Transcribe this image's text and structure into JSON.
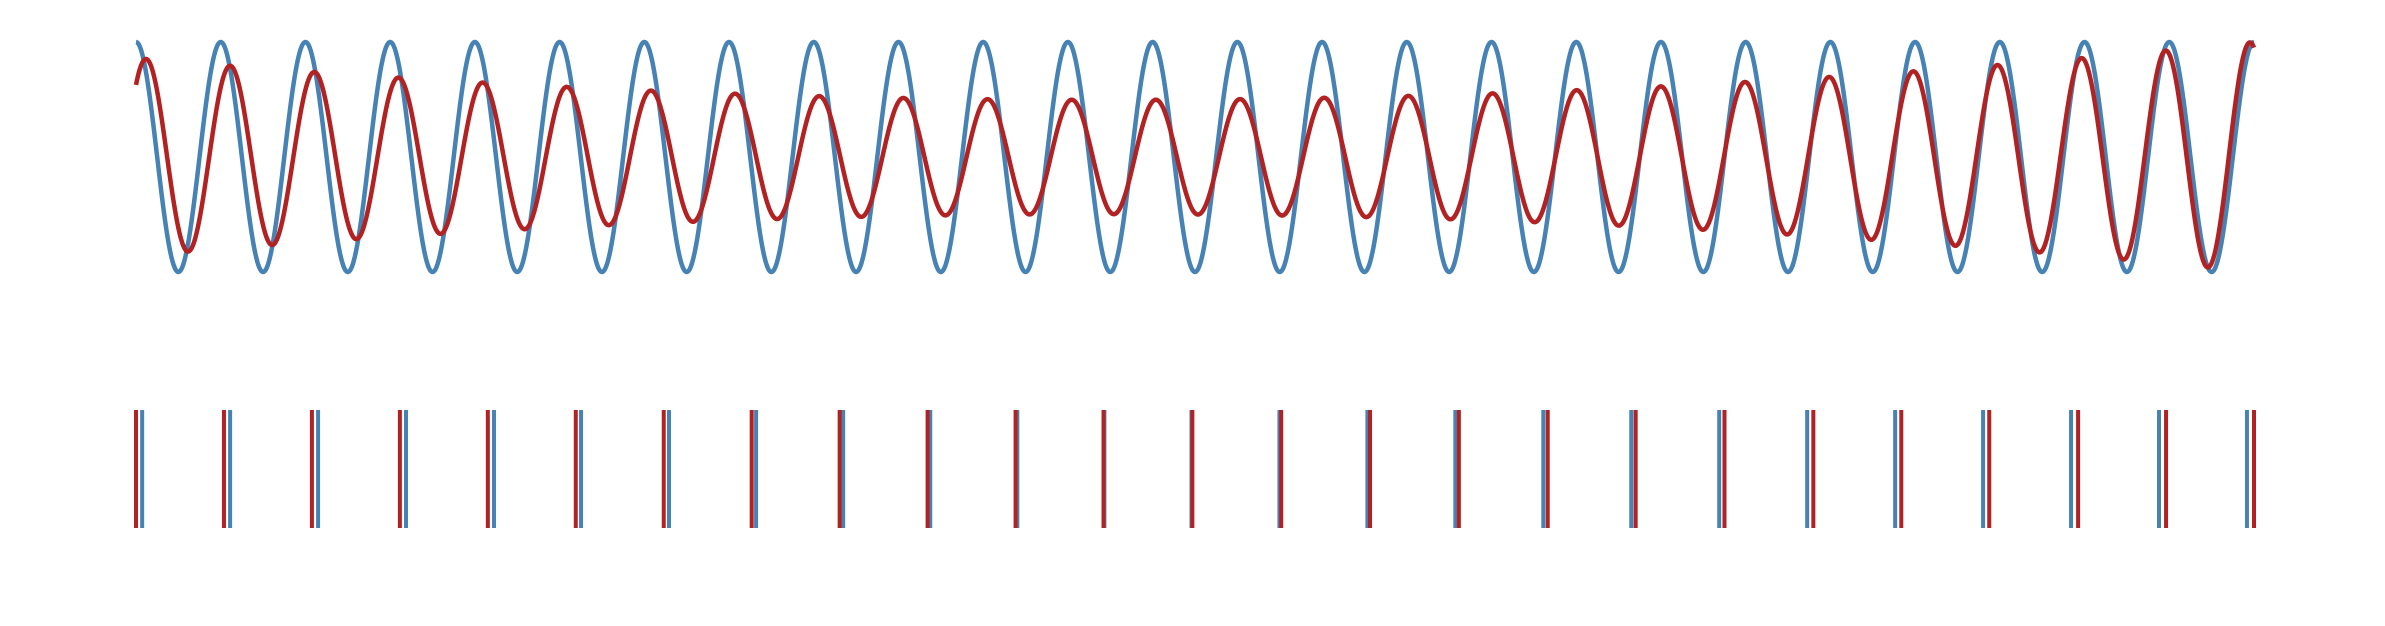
{
  "chart_data": [
    {
      "type": "line",
      "title": "",
      "xlabel": "",
      "ylabel": "",
      "axes_visible": false,
      "grid": false,
      "legend": "none",
      "x_range": [
        0,
        25
      ],
      "y_range": [
        -1,
        1
      ],
      "series": [
        {
          "color": "#4682b4",
          "description_free": true,
          "cycles": 25,
          "amplitude": 1.0,
          "phase": 0,
          "amplitude_profile": "constant"
        },
        {
          "color": "#b22222",
          "cycles": 25,
          "amplitude_start": 0.86,
          "amplitude_middle": 0.5,
          "amplitude_end": 1.0,
          "phase_offset_cycles_start": -0.12,
          "phase_offset_cycles_end": 0.05
        }
      ]
    },
    {
      "type": "event",
      "title": "",
      "axes_visible": false,
      "grid": false,
      "series": [
        {
          "color": "#4682b4",
          "events": [
            0.07,
            1.07,
            2.07,
            3.07,
            4.07,
            5.06,
            6.06,
            7.05,
            8.04,
            9.03,
            10.02,
            11.01,
            12.0,
            13.0,
            14.0,
            15.0,
            16.0,
            17.0,
            18.0,
            19.0,
            20.0,
            21.0,
            22.0,
            23.0,
            24.0
          ]
        },
        {
          "color": "#b22222",
          "events": [
            0.0,
            1.0,
            2.0,
            3.0,
            4.0,
            5.0,
            6.0,
            7.0,
            8.0,
            9.0,
            10.0,
            11.0,
            12.01,
            13.02,
            14.03,
            15.04,
            16.05,
            17.05,
            18.06,
            19.07,
            20.07,
            21.07,
            22.08,
            23.08,
            24.08
          ]
        }
      ]
    }
  ]
}
